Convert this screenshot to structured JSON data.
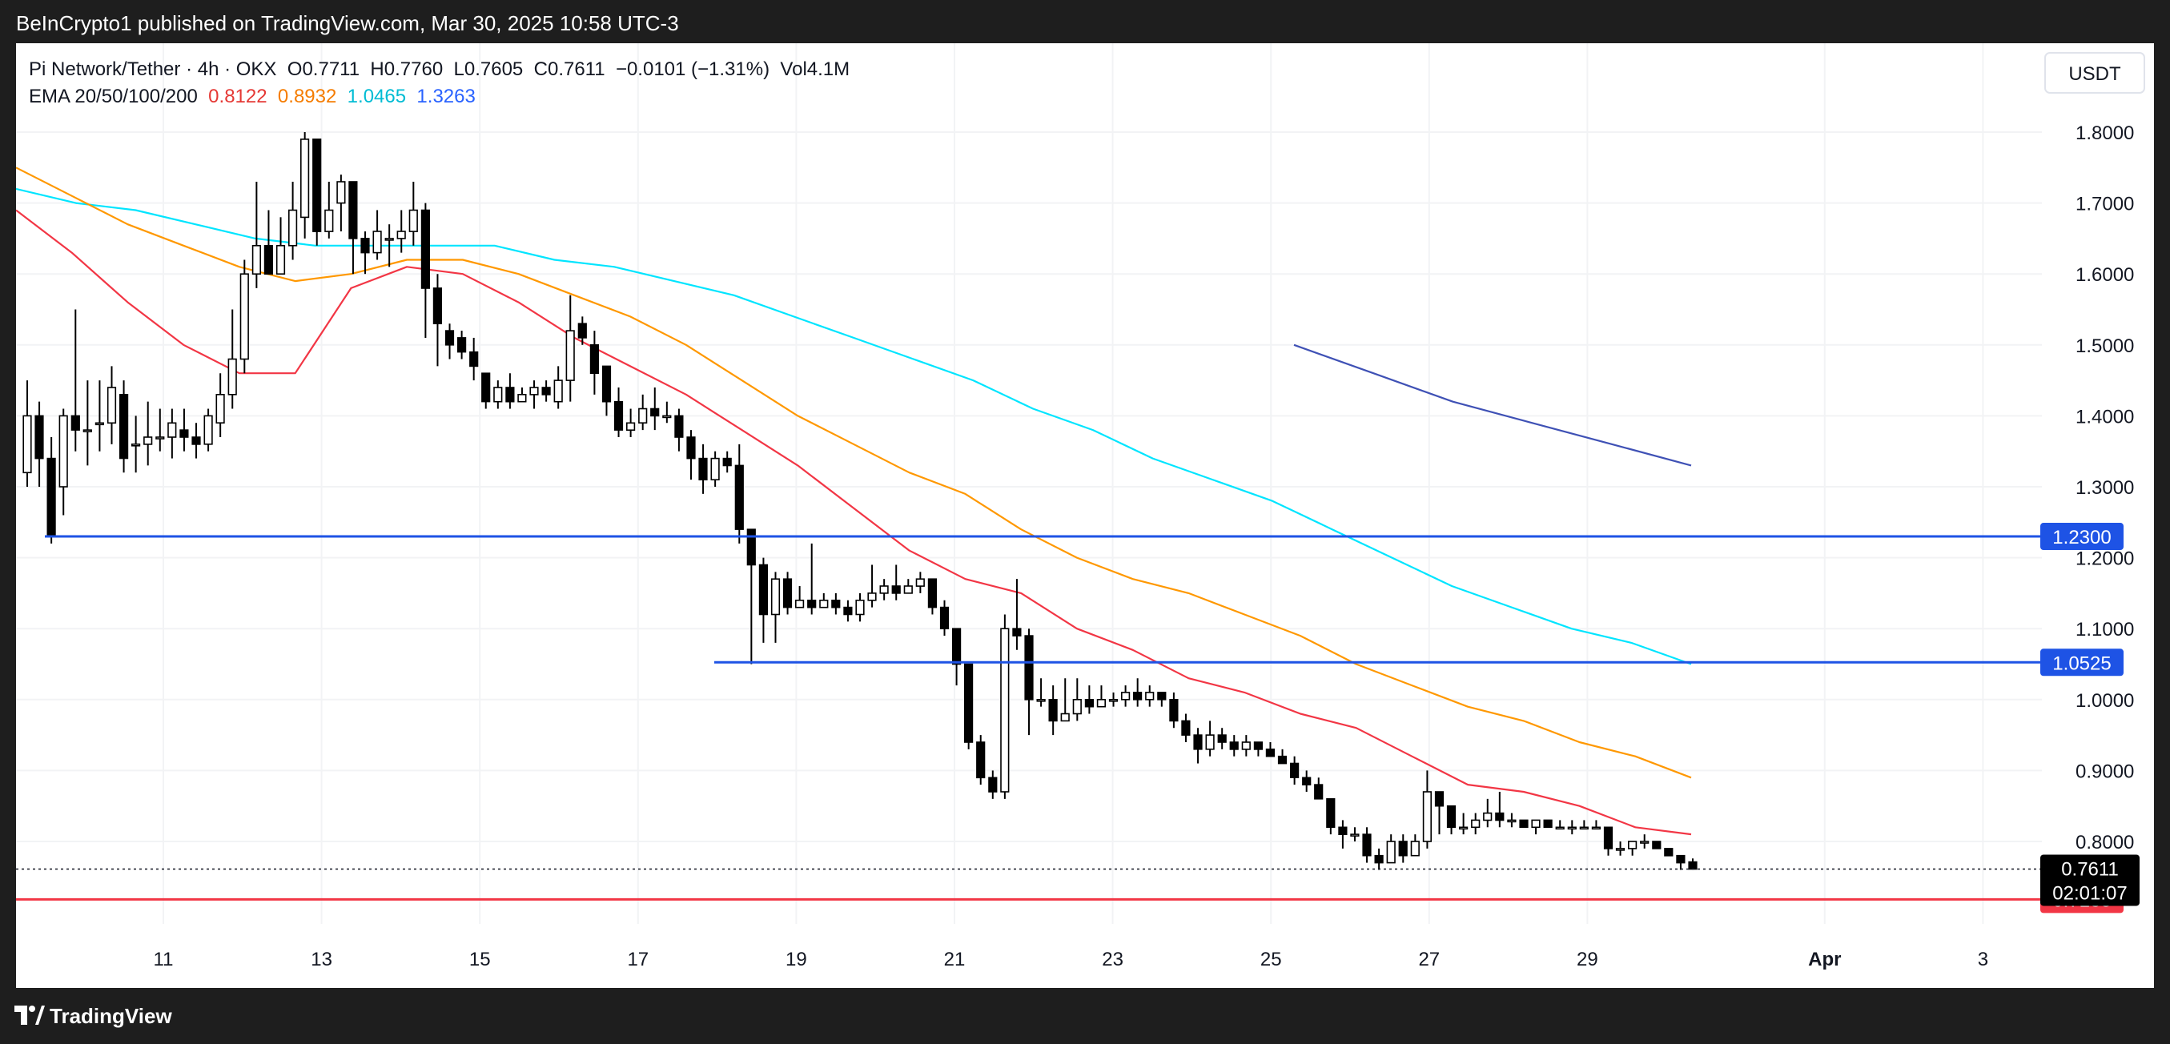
{
  "header": {
    "published_line": "BeInCrypto1 published on TradingView.com, Mar 30, 2025 10:58 UTC-3"
  },
  "legend": {
    "symbol_line": {
      "symbol": "Pi Network/Tether · 4h · OKX",
      "o_label": "O",
      "o_value": "0.7711",
      "h_label": "H",
      "h_value": "0.7760",
      "l_label": "L",
      "l_value": "0.7605",
      "c_label": "C",
      "c_value": "0.7611",
      "change": "−0.0101 (−1.31%)",
      "vol": "Vol4.1M"
    },
    "ema_line": {
      "label": "EMA 20/50/100/200",
      "ema20": "0.8122",
      "ema50": "0.8932",
      "ema100": "1.0465",
      "ema200": "1.3263"
    }
  },
  "currency_button": "USDT",
  "footer": {
    "brand": "TradingView"
  },
  "price_badges": {
    "level_upper": "1.2300",
    "level_lower": "1.0525",
    "last_price": "0.7611",
    "countdown": "02:01:07",
    "support": "0.7183"
  },
  "colors": {
    "up_candle": "#ffffff",
    "down_candle": "#000000",
    "candle_outline": "#000000",
    "ema20": "#f23645",
    "ema50": "#ff9800",
    "ema100": "#00e5ff",
    "ema200": "#3f51b5",
    "hline_blue": "#1e53e5",
    "hline_red": "#f23645",
    "ema20_text": "#e53935",
    "ema50_text": "#f57c00",
    "ema100_text": "#00bcd4",
    "ema200_text": "#2962ff"
  },
  "chart_data": {
    "type": "candlestick",
    "x_axis": {
      "tick_labels": [
        "11",
        "13",
        "15",
        "17",
        "19",
        "21",
        "23",
        "25",
        "27",
        "29",
        "Apr",
        "3"
      ],
      "range": [
        "2025-03-09",
        "2025-04-03"
      ]
    },
    "y_axis": {
      "tick_labels": [
        "1.8000",
        "1.7000",
        "1.6000",
        "1.5000",
        "1.4000",
        "1.3000",
        "1.2000",
        "1.1000",
        "1.0000",
        "0.9000",
        "0.8000"
      ],
      "ylim": [
        0.655,
        1.905
      ],
      "position": "right"
    },
    "candles": [
      [
        1.32,
        1.4,
        1.3,
        1.45
      ],
      [
        1.4,
        1.34,
        1.3,
        1.42
      ],
      [
        1.34,
        1.23,
        1.22,
        1.37
      ],
      [
        1.3,
        1.4,
        1.26,
        1.41
      ],
      [
        1.4,
        1.38,
        1.35,
        1.55
      ],
      [
        1.38,
        1.38,
        1.33,
        1.45
      ],
      [
        1.39,
        1.39,
        1.35,
        1.45
      ],
      [
        1.39,
        1.44,
        1.36,
        1.47
      ],
      [
        1.43,
        1.34,
        1.32,
        1.45
      ],
      [
        1.36,
        1.36,
        1.32,
        1.4
      ],
      [
        1.36,
        1.37,
        1.33,
        1.42
      ],
      [
        1.37,
        1.37,
        1.35,
        1.41
      ],
      [
        1.37,
        1.39,
        1.34,
        1.41
      ],
      [
        1.38,
        1.37,
        1.35,
        1.41
      ],
      [
        1.37,
        1.36,
        1.34,
        1.39
      ],
      [
        1.36,
        1.4,
        1.35,
        1.41
      ],
      [
        1.39,
        1.43,
        1.37,
        1.46
      ],
      [
        1.43,
        1.48,
        1.41,
        1.55
      ],
      [
        1.48,
        1.6,
        1.46,
        1.62
      ],
      [
        1.6,
        1.64,
        1.58,
        1.73
      ],
      [
        1.64,
        1.6,
        1.6,
        1.69
      ],
      [
        1.6,
        1.64,
        1.61,
        1.68
      ],
      [
        1.64,
        1.69,
        1.62,
        1.73
      ],
      [
        1.68,
        1.79,
        1.65,
        1.8
      ],
      [
        1.79,
        1.66,
        1.64,
        1.79
      ],
      [
        1.66,
        1.69,
        1.65,
        1.73
      ],
      [
        1.7,
        1.73,
        1.66,
        1.74
      ],
      [
        1.73,
        1.65,
        1.6,
        1.73
      ],
      [
        1.65,
        1.63,
        1.6,
        1.66
      ],
      [
        1.63,
        1.66,
        1.62,
        1.69
      ],
      [
        1.65,
        1.65,
        1.61,
        1.67
      ],
      [
        1.65,
        1.66,
        1.63,
        1.69
      ],
      [
        1.66,
        1.69,
        1.64,
        1.73
      ],
      [
        1.69,
        1.58,
        1.51,
        1.7
      ],
      [
        1.58,
        1.53,
        1.47,
        1.6
      ],
      [
        1.52,
        1.5,
        1.48,
        1.53
      ],
      [
        1.51,
        1.49,
        1.48,
        1.52
      ],
      [
        1.49,
        1.47,
        1.45,
        1.51
      ],
      [
        1.46,
        1.42,
        1.41,
        1.46
      ],
      [
        1.42,
        1.44,
        1.41,
        1.45
      ],
      [
        1.44,
        1.42,
        1.41,
        1.46
      ],
      [
        1.42,
        1.43,
        1.42,
        1.44
      ],
      [
        1.43,
        1.44,
        1.41,
        1.45
      ],
      [
        1.44,
        1.43,
        1.42,
        1.45
      ],
      [
        1.42,
        1.45,
        1.41,
        1.47
      ],
      [
        1.45,
        1.52,
        1.42,
        1.57
      ],
      [
        1.53,
        1.51,
        1.5,
        1.54
      ],
      [
        1.5,
        1.46,
        1.43,
        1.52
      ],
      [
        1.47,
        1.42,
        1.4,
        1.47
      ],
      [
        1.42,
        1.38,
        1.37,
        1.44
      ],
      [
        1.38,
        1.39,
        1.37,
        1.41
      ],
      [
        1.39,
        1.41,
        1.38,
        1.43
      ],
      [
        1.41,
        1.4,
        1.38,
        1.44
      ],
      [
        1.4,
        1.4,
        1.39,
        1.42
      ],
      [
        1.4,
        1.37,
        1.35,
        1.41
      ],
      [
        1.37,
        1.34,
        1.31,
        1.38
      ],
      [
        1.34,
        1.31,
        1.29,
        1.36
      ],
      [
        1.31,
        1.34,
        1.3,
        1.35
      ],
      [
        1.34,
        1.33,
        1.32,
        1.35
      ],
      [
        1.33,
        1.24,
        1.22,
        1.36
      ],
      [
        1.24,
        1.19,
        1.05,
        1.24
      ],
      [
        1.19,
        1.12,
        1.08,
        1.2
      ],
      [
        1.12,
        1.17,
        1.08,
        1.18
      ],
      [
        1.17,
        1.13,
        1.12,
        1.18
      ],
      [
        1.13,
        1.14,
        1.13,
        1.16
      ],
      [
        1.14,
        1.13,
        1.12,
        1.22
      ],
      [
        1.13,
        1.14,
        1.13,
        1.15
      ],
      [
        1.14,
        1.13,
        1.12,
        1.15
      ],
      [
        1.13,
        1.12,
        1.11,
        1.14
      ],
      [
        1.12,
        1.14,
        1.11,
        1.15
      ],
      [
        1.14,
        1.15,
        1.13,
        1.19
      ],
      [
        1.15,
        1.16,
        1.14,
        1.17
      ],
      [
        1.16,
        1.15,
        1.14,
        1.19
      ],
      [
        1.15,
        1.16,
        1.15,
        1.17
      ],
      [
        1.16,
        1.17,
        1.15,
        1.18
      ],
      [
        1.17,
        1.13,
        1.12,
        1.17
      ],
      [
        1.13,
        1.1,
        1.09,
        1.14
      ],
      [
        1.1,
        1.05,
        1.02,
        1.1
      ],
      [
        1.05,
        0.94,
        0.93,
        1.05
      ],
      [
        0.94,
        0.89,
        0.88,
        0.95
      ],
      [
        0.89,
        0.87,
        0.86,
        0.9
      ],
      [
        0.87,
        1.1,
        0.86,
        1.12
      ],
      [
        1.1,
        1.09,
        1.07,
        1.17
      ],
      [
        1.09,
        1.0,
        0.95,
        1.1
      ],
      [
        1.0,
        1.0,
        0.99,
        1.03
      ],
      [
        1.0,
        0.97,
        0.95,
        1.02
      ],
      [
        0.97,
        0.98,
        0.97,
        1.03
      ],
      [
        0.98,
        1.0,
        0.97,
        1.03
      ],
      [
        1.0,
        0.99,
        0.98,
        1.02
      ],
      [
        0.99,
        1.0,
        0.99,
        1.02
      ],
      [
        1.0,
        1.0,
        0.99,
        1.01
      ],
      [
        1.0,
        1.01,
        0.99,
        1.02
      ],
      [
        1.01,
        1.0,
        0.99,
        1.03
      ],
      [
        1.0,
        1.01,
        0.99,
        1.02
      ],
      [
        1.01,
        1.0,
        0.99,
        1.01
      ],
      [
        1.0,
        0.97,
        0.96,
        1.01
      ],
      [
        0.97,
        0.95,
        0.94,
        0.98
      ],
      [
        0.95,
        0.93,
        0.91,
        0.96
      ],
      [
        0.93,
        0.95,
        0.92,
        0.97
      ],
      [
        0.95,
        0.94,
        0.93,
        0.96
      ],
      [
        0.94,
        0.93,
        0.92,
        0.95
      ],
      [
        0.93,
        0.94,
        0.92,
        0.95
      ],
      [
        0.94,
        0.93,
        0.92,
        0.94
      ],
      [
        0.93,
        0.92,
        0.92,
        0.94
      ],
      [
        0.92,
        0.91,
        0.91,
        0.93
      ],
      [
        0.91,
        0.89,
        0.88,
        0.92
      ],
      [
        0.89,
        0.88,
        0.87,
        0.9
      ],
      [
        0.88,
        0.86,
        0.86,
        0.89
      ],
      [
        0.86,
        0.82,
        0.81,
        0.86
      ],
      [
        0.82,
        0.81,
        0.79,
        0.83
      ],
      [
        0.81,
        0.81,
        0.8,
        0.82
      ],
      [
        0.81,
        0.78,
        0.77,
        0.82
      ],
      [
        0.78,
        0.77,
        0.76,
        0.79
      ],
      [
        0.77,
        0.8,
        0.77,
        0.81
      ],
      [
        0.8,
        0.78,
        0.77,
        0.81
      ],
      [
        0.78,
        0.8,
        0.78,
        0.81
      ],
      [
        0.8,
        0.87,
        0.79,
        0.9
      ],
      [
        0.87,
        0.85,
        0.81,
        0.87
      ],
      [
        0.85,
        0.82,
        0.81,
        0.85
      ],
      [
        0.82,
        0.82,
        0.81,
        0.84
      ],
      [
        0.82,
        0.83,
        0.81,
        0.84
      ],
      [
        0.83,
        0.84,
        0.82,
        0.86
      ],
      [
        0.84,
        0.83,
        0.82,
        0.87
      ],
      [
        0.83,
        0.83,
        0.82,
        0.84
      ],
      [
        0.83,
        0.82,
        0.82,
        0.83
      ],
      [
        0.82,
        0.83,
        0.81,
        0.83
      ],
      [
        0.83,
        0.82,
        0.82,
        0.83
      ],
      [
        0.82,
        0.82,
        0.82,
        0.83
      ],
      [
        0.82,
        0.82,
        0.81,
        0.83
      ],
      [
        0.82,
        0.82,
        0.82,
        0.83
      ],
      [
        0.82,
        0.82,
        0.82,
        0.83
      ],
      [
        0.82,
        0.79,
        0.78,
        0.82
      ],
      [
        0.79,
        0.79,
        0.78,
        0.8
      ],
      [
        0.79,
        0.8,
        0.78,
        0.8
      ],
      [
        0.8,
        0.8,
        0.79,
        0.81
      ],
      [
        0.8,
        0.79,
        0.79,
        0.8
      ],
      [
        0.79,
        0.78,
        0.78,
        0.79
      ],
      [
        0.78,
        0.77,
        0.76,
        0.78
      ],
      [
        0.7711,
        0.7611,
        0.7605,
        0.776
      ]
    ],
    "candle_fields": [
      "open",
      "close",
      "low",
      "high"
    ],
    "ema20": [
      1.69,
      1.63,
      1.56,
      1.5,
      1.46,
      1.46,
      1.58,
      1.61,
      1.6,
      1.56,
      1.51,
      1.47,
      1.43,
      1.38,
      1.33,
      1.27,
      1.21,
      1.17,
      1.15,
      1.1,
      1.07,
      1.03,
      1.01,
      0.98,
      0.96,
      0.92,
      0.88,
      0.87,
      0.85,
      0.82,
      0.81
    ],
    "ema50": [
      1.75,
      1.71,
      1.67,
      1.64,
      1.61,
      1.59,
      1.6,
      1.62,
      1.62,
      1.6,
      1.57,
      1.54,
      1.5,
      1.45,
      1.4,
      1.36,
      1.32,
      1.29,
      1.24,
      1.2,
      1.17,
      1.15,
      1.12,
      1.09,
      1.05,
      1.02,
      0.99,
      0.97,
      0.94,
      0.92,
      0.89
    ],
    "ema100": [
      1.72,
      1.7,
      1.69,
      1.67,
      1.65,
      1.64,
      1.64,
      1.64,
      1.64,
      1.62,
      1.61,
      1.59,
      1.57,
      1.54,
      1.51,
      1.48,
      1.45,
      1.41,
      1.38,
      1.34,
      1.31,
      1.28,
      1.24,
      1.2,
      1.16,
      1.13,
      1.1,
      1.08,
      1.05
    ],
    "ema200": [
      1.5,
      1.46,
      1.42,
      1.39,
      1.36,
      1.33
    ],
    "horizontal_levels": [
      {
        "value": 1.23,
        "color": "blue"
      },
      {
        "value": 1.0525,
        "color": "blue"
      },
      {
        "value": 0.7183,
        "color": "red"
      }
    ],
    "last_price": 0.7611,
    "grid": true
  }
}
